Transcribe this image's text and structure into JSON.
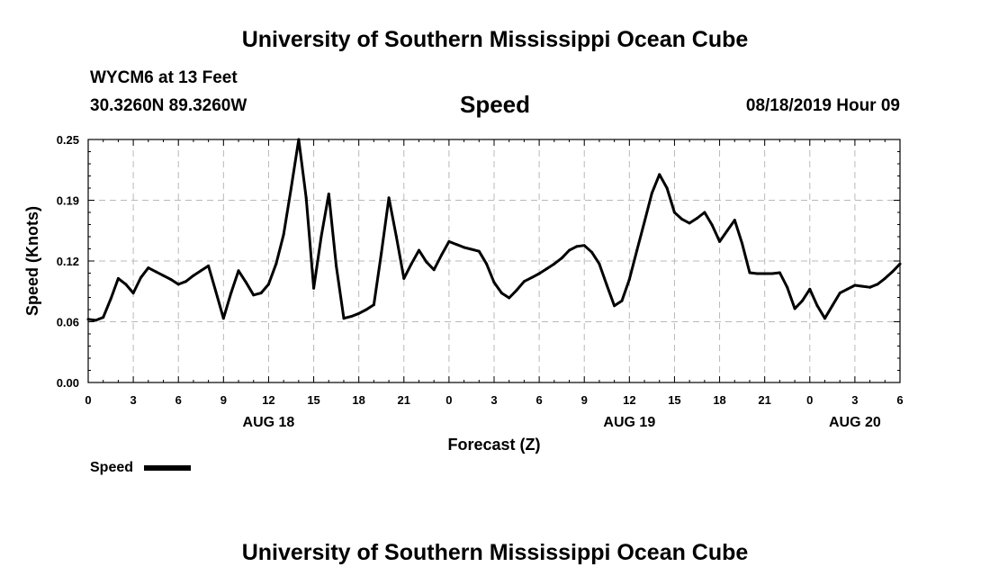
{
  "header": {
    "title": "University of Southern Mississippi Ocean Cube",
    "station": "WYCM6 at 13 Feet",
    "coords": "30.3260N 89.3260W",
    "variable": "Speed",
    "issued": "08/18/2019 Hour 09"
  },
  "footer": {
    "title": "University of Southern Mississippi Ocean Cube"
  },
  "legend": {
    "label": "Speed"
  },
  "chart_data": {
    "type": "line",
    "title": "Speed",
    "xlabel": "Forecast (Z)",
    "ylabel": "Speed (Knots)",
    "ylim": [
      0,
      0.25
    ],
    "xlim": [
      0,
      54
    ],
    "grid": true,
    "legend": "bottom-left",
    "y_ticks": [
      "0.00",
      "0.06",
      "0.12",
      "0.19",
      "0.25"
    ],
    "y_tick_values": [
      0,
      0.0625,
      0.125,
      0.1875,
      0.25
    ],
    "x_ticks": [
      {
        "h": 0,
        "label": "0"
      },
      {
        "h": 3,
        "label": "3"
      },
      {
        "h": 6,
        "label": "6"
      },
      {
        "h": 9,
        "label": "9"
      },
      {
        "h": 12,
        "label": "12"
      },
      {
        "h": 15,
        "label": "15"
      },
      {
        "h": 18,
        "label": "18"
      },
      {
        "h": 21,
        "label": "21"
      },
      {
        "h": 24,
        "label": "0"
      },
      {
        "h": 27,
        "label": "3"
      },
      {
        "h": 30,
        "label": "6"
      },
      {
        "h": 33,
        "label": "9"
      },
      {
        "h": 36,
        "label": "12"
      },
      {
        "h": 39,
        "label": "15"
      },
      {
        "h": 42,
        "label": "18"
      },
      {
        "h": 45,
        "label": "21"
      },
      {
        "h": 48,
        "label": "0"
      },
      {
        "h": 51,
        "label": "3"
      },
      {
        "h": 54,
        "label": "6"
      }
    ],
    "date_labels": [
      {
        "h": 12,
        "label": "AUG 18"
      },
      {
        "h": 36,
        "label": "AUG 19"
      },
      {
        "h": 51,
        "label": "AUG 20"
      }
    ],
    "series": [
      {
        "name": "Speed",
        "x": [
          0,
          0.5,
          1,
          1.5,
          2,
          2.5,
          3,
          3.5,
          4,
          4.5,
          5,
          5.5,
          6,
          6.5,
          7,
          7.5,
          8,
          8.5,
          9,
          9.5,
          10,
          10.5,
          11,
          11.5,
          12,
          12.5,
          13,
          13.5,
          14,
          14.5,
          15,
          15.5,
          16,
          16.5,
          17,
          17.5,
          18,
          18.5,
          19,
          19.5,
          20,
          20.5,
          21,
          21.5,
          22,
          22.5,
          23,
          23.5,
          24,
          24.5,
          25,
          25.5,
          26,
          26.5,
          27,
          27.5,
          28,
          28.5,
          29,
          29.5,
          30,
          30.5,
          31,
          31.5,
          32,
          32.5,
          33,
          33.5,
          34,
          34.5,
          35,
          35.5,
          36,
          36.5,
          37,
          37.5,
          38,
          38.5,
          39,
          39.5,
          40,
          40.5,
          41,
          41.5,
          42,
          42.5,
          43,
          43.5,
          44,
          44.5,
          45,
          45.5,
          46,
          46.5,
          47,
          47.5,
          48,
          48.5,
          49,
          49.5,
          50,
          50.5,
          51,
          51.5,
          52,
          52.5,
          53,
          53.5,
          54
        ],
        "values": [
          0.065,
          0.064,
          0.067,
          0.086,
          0.107,
          0.101,
          0.092,
          0.108,
          0.118,
          0.114,
          0.11,
          0.106,
          0.101,
          0.104,
          0.11,
          0.115,
          0.12,
          0.093,
          0.066,
          0.092,
          0.115,
          0.103,
          0.09,
          0.092,
          0.101,
          0.122,
          0.152,
          0.2,
          0.25,
          0.19,
          0.097,
          0.15,
          0.194,
          0.12,
          0.066,
          0.068,
          0.071,
          0.075,
          0.08,
          0.133,
          0.19,
          0.15,
          0.107,
          0.122,
          0.136,
          0.124,
          0.116,
          0.131,
          0.145,
          0.142,
          0.139,
          0.137,
          0.135,
          0.122,
          0.103,
          0.092,
          0.087,
          0.095,
          0.104,
          0.108,
          0.112,
          0.117,
          0.122,
          0.128,
          0.136,
          0.14,
          0.141,
          0.134,
          0.122,
          0.1,
          0.079,
          0.084,
          0.106,
          0.136,
          0.165,
          0.195,
          0.214,
          0.2,
          0.175,
          0.168,
          0.164,
          0.169,
          0.175,
          0.162,
          0.145,
          0.156,
          0.167,
          0.143,
          0.113,
          0.112,
          0.112,
          0.112,
          0.113,
          0.098,
          0.076,
          0.084,
          0.096,
          0.079,
          0.066,
          0.079,
          0.092,
          0.096,
          0.1,
          0.099,
          0.098,
          0.101,
          0.107,
          0.114,
          0.122
        ]
      }
    ]
  }
}
